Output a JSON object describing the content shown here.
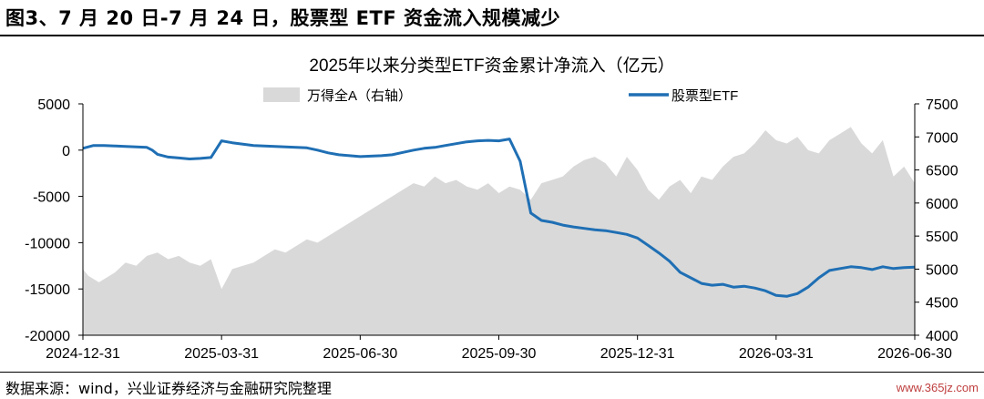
{
  "figure_title": "图3、7 月 20 日-7 月 24 日，股票型 ETF 资金流入规模减少",
  "source": "数据来源：wind，兴业证券经济与金融研究院整理",
  "watermark": "www.365jz.com",
  "colors": {
    "etf_line": "#1f6fb4",
    "index_area": "#d9d9d9",
    "axis": "#000000"
  },
  "chart_data": {
    "type": "line",
    "title": "2025年以来分类型ETF资金累计净流入（亿元）",
    "legend_position": "top",
    "grid": false,
    "x_ticks": [
      "2024-12-31",
      "2025-03-31",
      "2025-06-30",
      "2025-09-30",
      "2025-12-31",
      "2026-03-31",
      "2026-06-30"
    ],
    "y_left": {
      "lim": [
        -20000,
        5000
      ],
      "ticks": [
        "5000",
        "0",
        "-5000",
        "-10000",
        "-15000",
        "-20000"
      ]
    },
    "y_right": {
      "lim": [
        4000,
        7500
      ],
      "ticks": [
        "7500",
        "7000",
        "6500",
        "6000",
        "5500",
        "5000",
        "4500",
        "4000"
      ]
    },
    "series": [
      {
        "name": "万得全A（右轴）",
        "type": "area",
        "axis": "right",
        "x": [
          0.0,
          0.5,
          1.5,
          3,
          4,
          5,
          6,
          7,
          8,
          9,
          10,
          11,
          12,
          13,
          14,
          15,
          16,
          17,
          18,
          19,
          20,
          21,
          22,
          23,
          24,
          25,
          26,
          27,
          28,
          29,
          30,
          31,
          32,
          33,
          34,
          35,
          36,
          37,
          38,
          39,
          40,
          41,
          42,
          43,
          44,
          45,
          46,
          47,
          48,
          49,
          50,
          51,
          52,
          53,
          54,
          55,
          56,
          57,
          58,
          59,
          60,
          61,
          62,
          63,
          64,
          65,
          66,
          67,
          68,
          69,
          70,
          71,
          72,
          73,
          74,
          75,
          76,
          77,
          78
        ],
        "values": [
          5000,
          4900,
          4800,
          4950,
          5100,
          5050,
          5200,
          5250,
          5150,
          5200,
          5100,
          5050,
          5150,
          4700,
          5000,
          5050,
          5100,
          5200,
          5300,
          5250,
          5350,
          5450,
          5400,
          5500,
          5600,
          5700,
          5800,
          5900,
          6000,
          6100,
          6200,
          6300,
          6250,
          6400,
          6300,
          6350,
          6250,
          6200,
          6300,
          6150,
          6250,
          6200,
          6050,
          6300,
          6350,
          6400,
          6550,
          6650,
          6700,
          6600,
          6400,
          6700,
          6500,
          6200,
          6050,
          6250,
          6350,
          6150,
          6400,
          6350,
          6550,
          6700,
          6750,
          6900,
          7100,
          6950,
          6900,
          7000,
          6800,
          6750,
          6950,
          7050,
          7150,
          6900,
          6750,
          6950,
          6400,
          6550,
          6300
        ]
      },
      {
        "name": "股票型ETF",
        "type": "line",
        "axis": "left",
        "x": [
          0,
          1,
          2,
          3,
          4,
          5,
          6,
          6.5,
          7,
          8,
          9,
          10,
          11,
          12,
          13,
          14,
          15,
          16,
          17,
          18,
          19,
          20,
          21,
          22,
          23,
          24,
          25,
          26,
          27,
          28,
          29,
          30,
          31,
          32,
          33,
          34,
          35,
          36,
          37,
          38,
          39,
          40,
          41,
          42,
          43,
          44,
          45,
          46,
          47,
          48,
          49,
          50,
          51,
          52,
          53,
          54,
          55,
          56,
          57,
          58,
          59,
          60,
          61,
          62,
          63,
          64,
          65,
          66,
          67,
          68,
          69,
          70,
          71,
          72,
          73,
          74,
          75,
          76,
          77,
          78
        ],
        "values": [
          200,
          500,
          500,
          450,
          400,
          350,
          300,
          0,
          -450,
          -750,
          -850,
          -950,
          -900,
          -800,
          1000,
          800,
          650,
          500,
          450,
          400,
          350,
          300,
          250,
          0,
          -300,
          -500,
          -600,
          -700,
          -650,
          -600,
          -500,
          -250,
          0,
          200,
          300,
          500,
          700,
          900,
          1000,
          1050,
          1000,
          1200,
          -1200,
          -6800,
          -7600,
          -7800,
          -8100,
          -8300,
          -8450,
          -8600,
          -8700,
          -8900,
          -9100,
          -9500,
          -10300,
          -11100,
          -12000,
          -13200,
          -13800,
          -14400,
          -14600,
          -14500,
          -14800,
          -14700,
          -14900,
          -15200,
          -15700,
          -15800,
          -15500,
          -14800,
          -13800,
          -13000,
          -12800,
          -12600,
          -12700,
          -12900,
          -12600,
          -12800,
          -12700,
          -12650
        ]
      }
    ]
  }
}
